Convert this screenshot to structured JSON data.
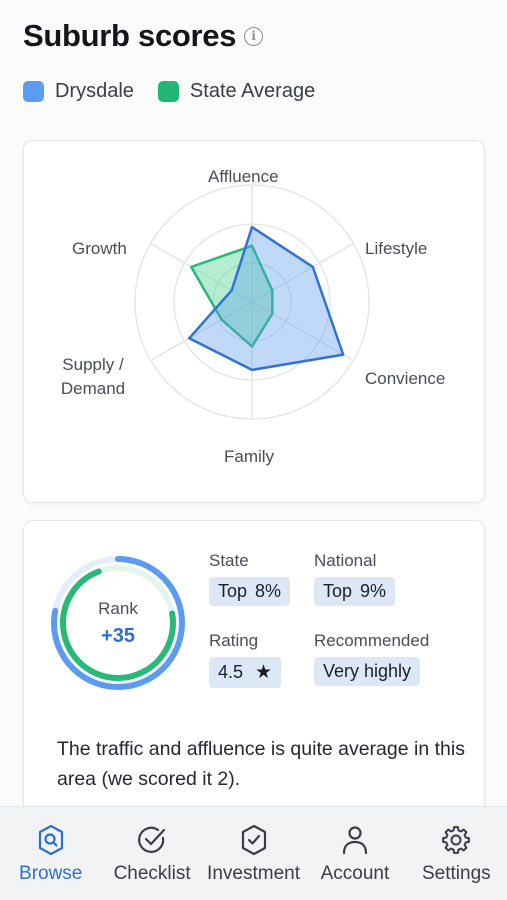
{
  "header": {
    "title": "Suburb scores",
    "info_icon": "info-icon"
  },
  "legend": [
    {
      "label": "Drysdale",
      "color": "#5b9cf0"
    },
    {
      "label": "State Average",
      "color": "#22b573"
    }
  ],
  "chart_data": {
    "type": "radar",
    "axes": [
      "Affluence",
      "Lifestyle",
      "Convience",
      "Family",
      "Supply / Demand",
      "Growth"
    ],
    "scale_max": 5,
    "rings": 3,
    "series": [
      {
        "name": "Drysdale",
        "color": "#2f72d8",
        "fill": "rgba(91,156,240,0.38)",
        "values": [
          3.2,
          3.0,
          4.5,
          2.9,
          3.1,
          1.0
        ]
      },
      {
        "name": "State Average",
        "color": "#28b978",
        "fill": "rgba(90,214,150,0.45)",
        "values": [
          2.4,
          1.0,
          1.0,
          1.9,
          1.5,
          3.0
        ]
      }
    ]
  },
  "stats": {
    "rank_label": "Rank",
    "rank_value": "+35",
    "rank_progress_outer": 0.78,
    "rank_progress_inner": 0.72,
    "state_title": "State",
    "state_value_a": "Top",
    "state_value_b": "8%",
    "national_title": "National",
    "national_value_a": "Top",
    "national_value_b": "9%",
    "rating_title": "Rating",
    "rating_value": "4.5",
    "recommended_title": "Recommended",
    "recommended_value": "Very highly",
    "description": "The traffic and affluence is quite average in this area (we scored it 2)."
  },
  "nav": [
    {
      "label": "Browse",
      "icon": "browse-icon",
      "active": true
    },
    {
      "label": "Checklist",
      "icon": "checklist-icon",
      "active": false
    },
    {
      "label": "Investment",
      "icon": "investment-icon",
      "active": false
    },
    {
      "label": "Account",
      "icon": "account-icon",
      "active": false
    },
    {
      "label": "Settings",
      "icon": "settings-icon",
      "active": false
    }
  ]
}
